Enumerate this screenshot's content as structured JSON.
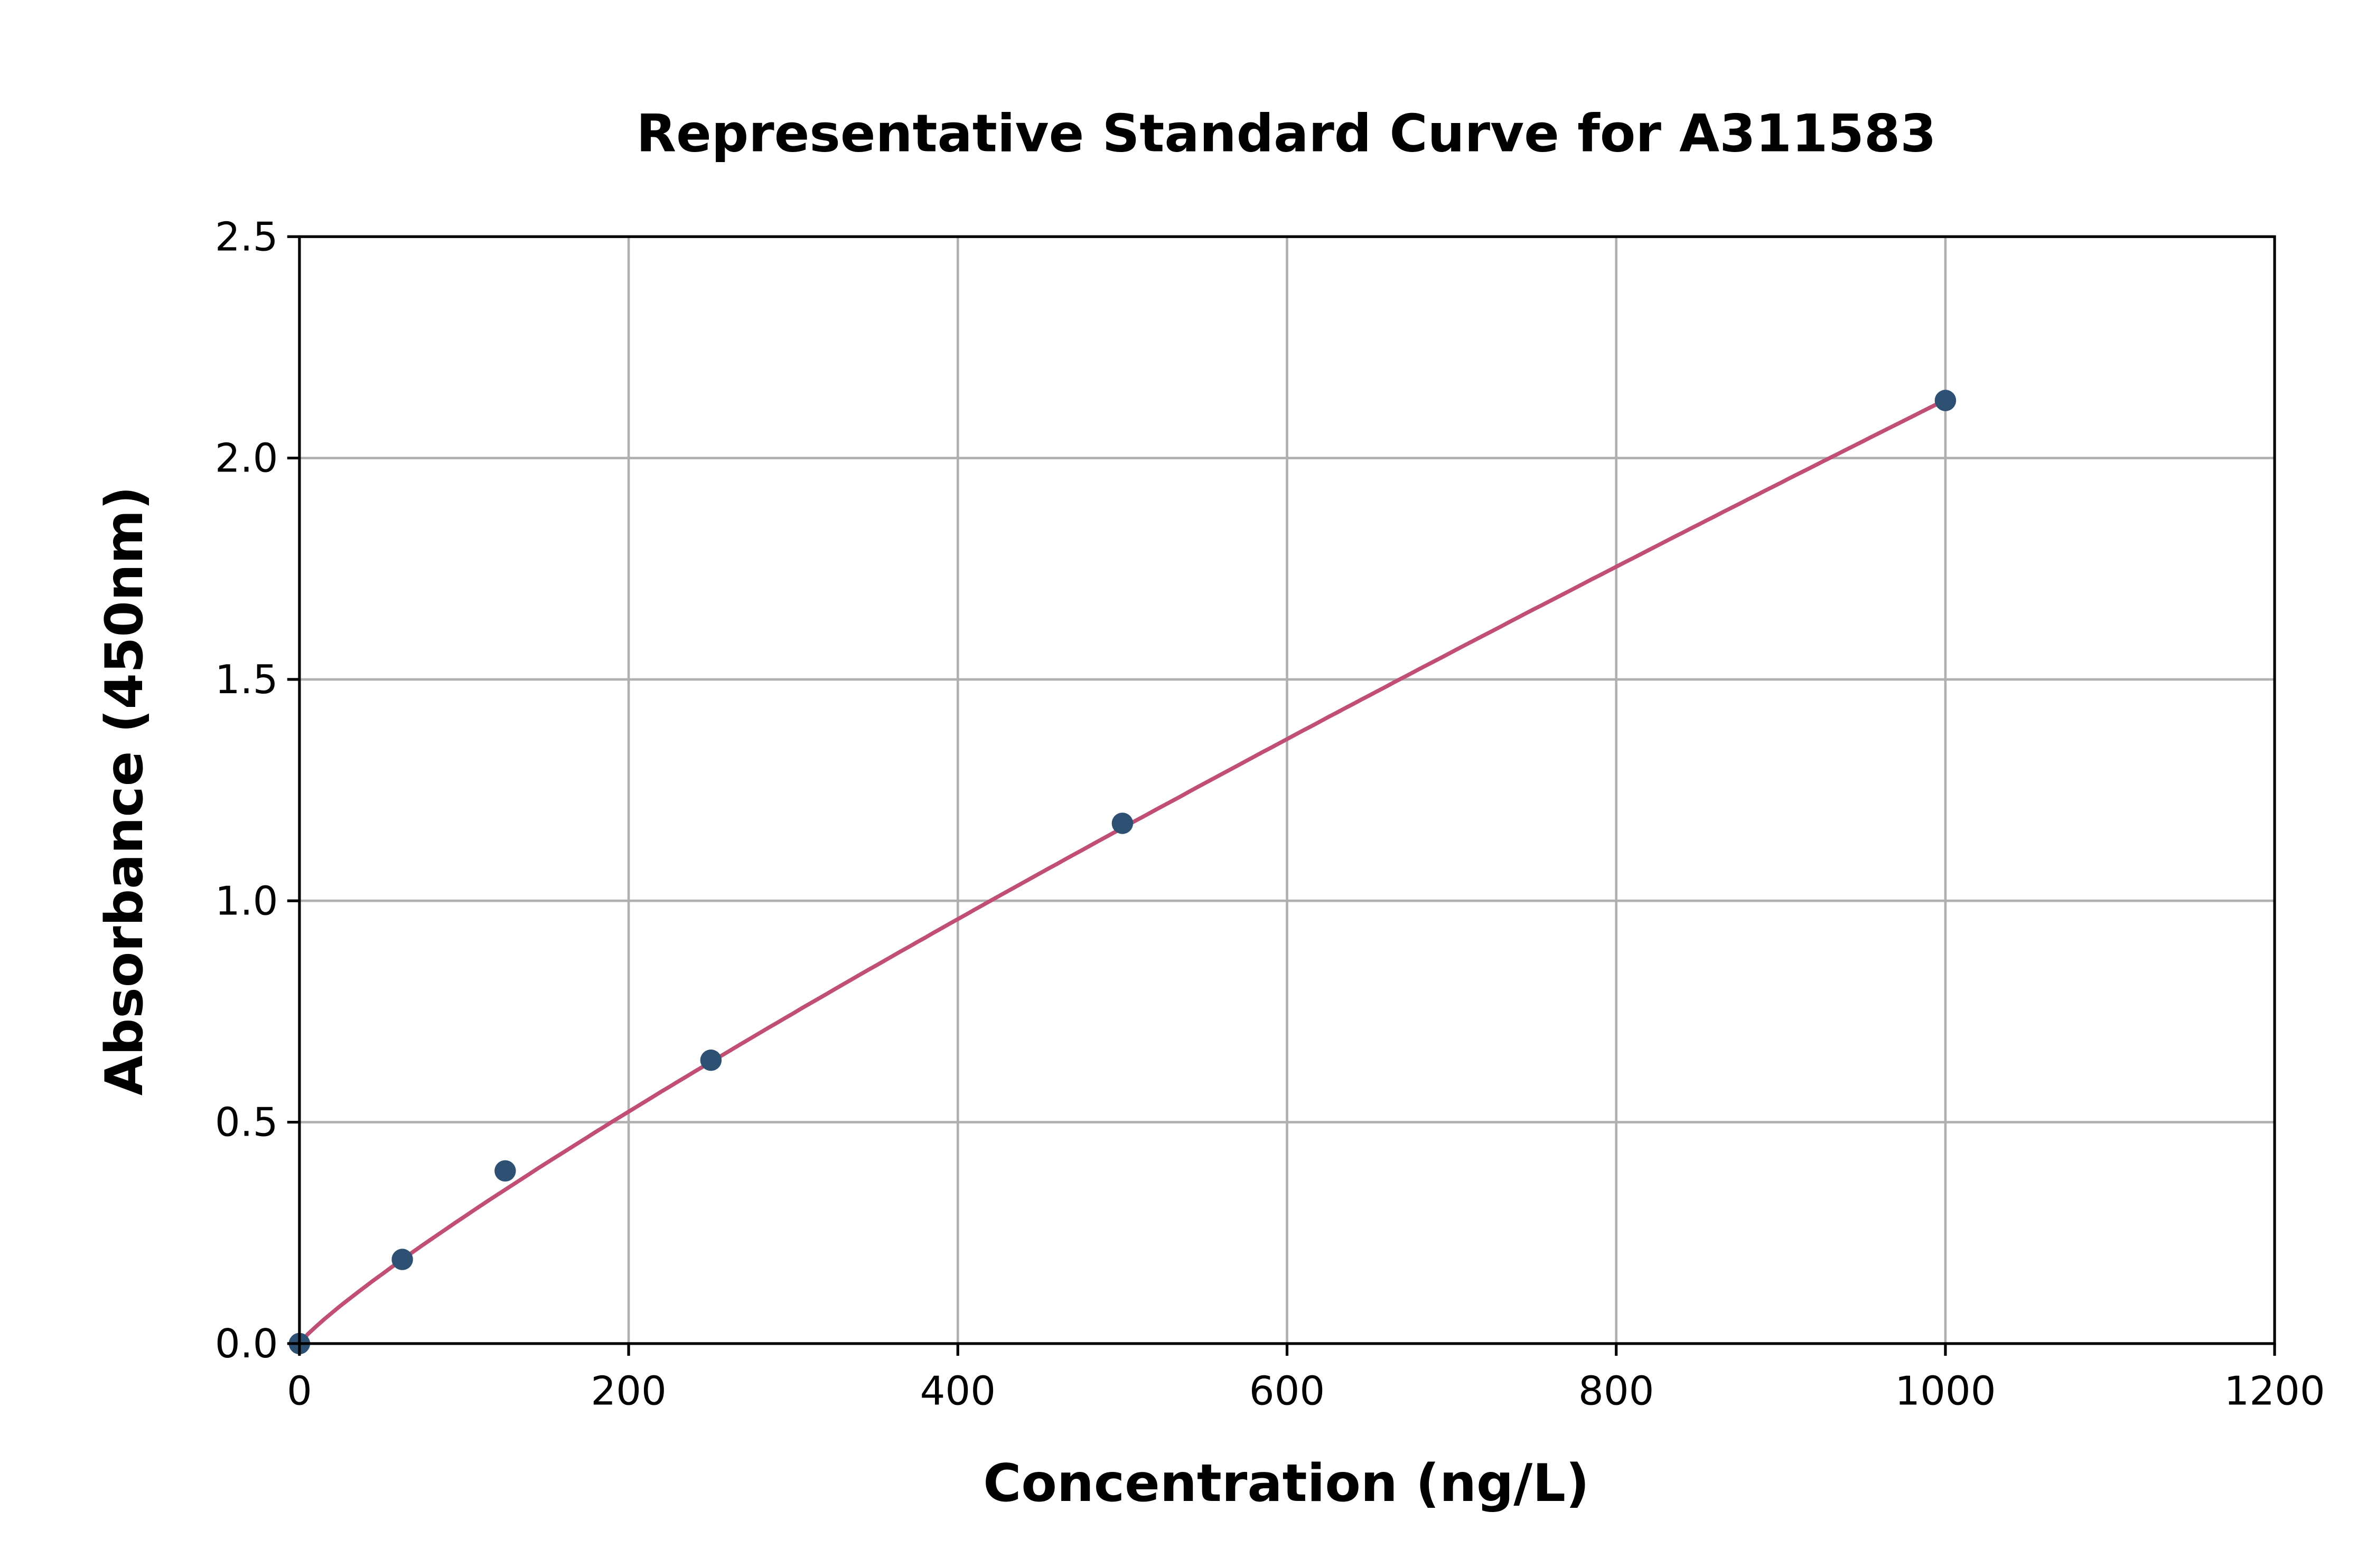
{
  "chart_data": {
    "type": "scatter",
    "title": "Representative Standard Curve for A311583",
    "xlabel": "Concentration (ng/L)",
    "ylabel": "Absorbance (450nm)",
    "xlim": [
      0,
      1200
    ],
    "ylim": [
      0,
      2.5
    ],
    "xticks": [
      "0",
      "200",
      "400",
      "600",
      "800",
      "1000",
      "1200"
    ],
    "yticks": [
      "0.0",
      "0.5",
      "1.0",
      "1.5",
      "2.0",
      "2.5"
    ],
    "grid": true,
    "points": {
      "x": [
        0,
        62.5,
        125,
        250,
        500,
        1000
      ],
      "y": [
        0.0,
        0.19,
        0.39,
        0.64,
        1.175,
        2.13
      ]
    },
    "fit_line": true,
    "colors": {
      "points": "#2e5073",
      "curve": "#c04f73"
    }
  }
}
